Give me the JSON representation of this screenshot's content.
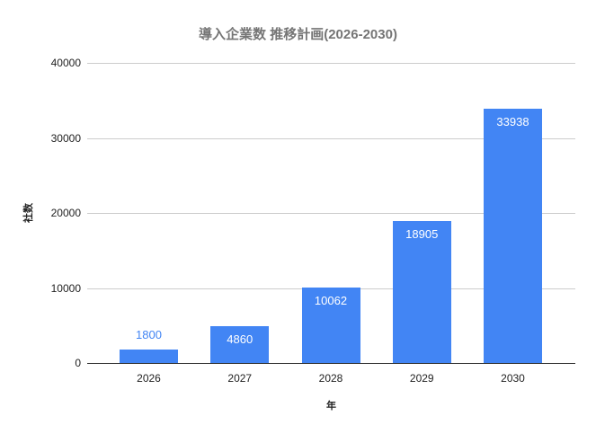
{
  "chart": {
    "colors": {
      "bar": "#4285f4",
      "gridline": "#cccccc",
      "axis_line": "#333333",
      "title_text": "#757575",
      "tick_text": "#222222",
      "axis_title_text": "#222222",
      "value_label_inside": "#ffffff",
      "value_label_outside": "#4285f4",
      "background": "#ffffff"
    }
  },
  "chart_data": {
    "type": "bar",
    "title": "導入企業数 推移計画(2026-2030)",
    "categories": [
      "2026",
      "2027",
      "2028",
      "2029",
      "2030"
    ],
    "values": [
      1800,
      4860,
      10062,
      18905,
      33938
    ],
    "xlabel": "年",
    "ylabel": "社数",
    "ylim": [
      0,
      40000
    ],
    "yticks": [
      0,
      10000,
      20000,
      30000,
      40000
    ],
    "grid": true,
    "legend": "none",
    "value_labels": true
  }
}
